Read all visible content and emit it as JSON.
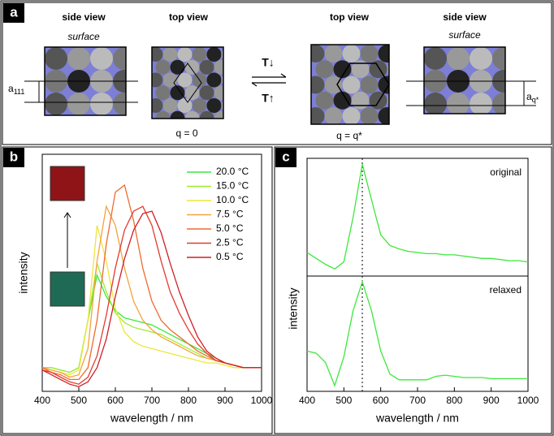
{
  "panel_labels": [
    "a",
    "b",
    "c"
  ],
  "diagram": {
    "view_labels": [
      "side view",
      "top view",
      "top view",
      "side view"
    ],
    "surface_labels": [
      "surface",
      "surface"
    ],
    "spacing_labels": [
      {
        "main": "a",
        "sub": "111"
      },
      {
        "main": "a",
        "sub": "q*"
      }
    ],
    "transition_labels": [
      "T↓",
      "T↑"
    ],
    "q_labels": [
      "q = 0",
      "q = q*"
    ]
  },
  "chart_data": [
    {
      "type": "line",
      "xlabel": "wavelength / nm",
      "ylabel": "intensity",
      "xlim": [
        400,
        1000
      ],
      "ylim": [
        0,
        1
      ],
      "xticks": [
        400,
        500,
        600,
        700,
        800,
        900,
        1000
      ],
      "legend": "top-right",
      "x": [
        400,
        425,
        450,
        475,
        500,
        525,
        550,
        575,
        600,
        625,
        650,
        675,
        700,
        725,
        750,
        775,
        800,
        825,
        850,
        875,
        900,
        925,
        950,
        975,
        1000
      ],
      "series": [
        {
          "name": "20.0 °C",
          "color": "#3de83d",
          "values": [
            0.1,
            0.1,
            0.09,
            0.08,
            0.1,
            0.3,
            0.49,
            0.4,
            0.34,
            0.31,
            0.3,
            0.29,
            0.28,
            0.26,
            0.24,
            0.22,
            0.2,
            0.18,
            0.16,
            0.14,
            0.12,
            0.11,
            0.1,
            0.1,
            0.1
          ]
        },
        {
          "name": "15.0 °C",
          "color": "#9fec2f",
          "values": [
            0.1,
            0.1,
            0.09,
            0.08,
            0.1,
            0.3,
            0.54,
            0.42,
            0.33,
            0.29,
            0.27,
            0.26,
            0.25,
            0.24,
            0.22,
            0.2,
            0.18,
            0.16,
            0.14,
            0.13,
            0.12,
            0.11,
            0.1,
            0.1,
            0.1
          ]
        },
        {
          "name": "10.0 °C",
          "color": "#ece63c",
          "values": [
            0.1,
            0.09,
            0.08,
            0.07,
            0.09,
            0.3,
            0.7,
            0.55,
            0.35,
            0.25,
            0.21,
            0.19,
            0.18,
            0.17,
            0.16,
            0.15,
            0.14,
            0.13,
            0.12,
            0.12,
            0.11,
            0.1,
            0.1,
            0.1,
            0.1
          ]
        },
        {
          "name": "7.5 °C",
          "color": "#f4a23c",
          "values": [
            0.1,
            0.09,
            0.08,
            0.06,
            0.07,
            0.18,
            0.55,
            0.78,
            0.7,
            0.52,
            0.38,
            0.3,
            0.26,
            0.23,
            0.21,
            0.19,
            0.17,
            0.15,
            0.14,
            0.13,
            0.12,
            0.11,
            0.1,
            0.1,
            0.1
          ]
        },
        {
          "name": "5.0 °C",
          "color": "#f06a30",
          "values": [
            0.1,
            0.08,
            0.07,
            0.05,
            0.05,
            0.1,
            0.3,
            0.62,
            0.84,
            0.87,
            0.72,
            0.52,
            0.38,
            0.3,
            0.26,
            0.23,
            0.2,
            0.17,
            0.15,
            0.13,
            0.12,
            0.11,
            0.1,
            0.1,
            0.1
          ]
        },
        {
          "name": "2.5 °C",
          "color": "#e43a2e",
          "values": [
            0.09,
            0.08,
            0.06,
            0.04,
            0.03,
            0.06,
            0.15,
            0.32,
            0.52,
            0.68,
            0.76,
            0.78,
            0.7,
            0.55,
            0.42,
            0.33,
            0.26,
            0.2,
            0.16,
            0.13,
            0.12,
            0.11,
            0.1,
            0.1,
            0.1
          ]
        },
        {
          "name": "0.5 °C",
          "color": "#d01f24",
          "values": [
            0.09,
            0.07,
            0.05,
            0.03,
            0.02,
            0.04,
            0.1,
            0.22,
            0.4,
            0.56,
            0.68,
            0.75,
            0.76,
            0.67,
            0.54,
            0.42,
            0.32,
            0.23,
            0.17,
            0.14,
            0.12,
            0.11,
            0.1,
            0.1,
            0.1
          ]
        }
      ]
    },
    {
      "type": "line",
      "ylabel": "intensity",
      "annotation": "original",
      "reference_line_x": 550,
      "xlim": [
        400,
        1000
      ],
      "ylim": [
        0,
        1
      ],
      "x": [
        400,
        425,
        450,
        475,
        500,
        525,
        550,
        575,
        600,
        625,
        650,
        675,
        700,
        725,
        750,
        775,
        800,
        825,
        850,
        875,
        900,
        925,
        950,
        975,
        1000
      ],
      "series": [
        {
          "name": "original",
          "color": "#3de83d",
          "values": [
            0.2,
            0.15,
            0.1,
            0.06,
            0.12,
            0.5,
            0.95,
            0.65,
            0.35,
            0.26,
            0.23,
            0.21,
            0.2,
            0.19,
            0.19,
            0.18,
            0.18,
            0.17,
            0.16,
            0.15,
            0.15,
            0.14,
            0.13,
            0.13,
            0.12
          ]
        }
      ]
    },
    {
      "type": "line",
      "xlabel": "wavelength / nm",
      "annotation": "relaxed",
      "reference_line_x": 550,
      "xlim": [
        400,
        1000
      ],
      "ylim": [
        0,
        1
      ],
      "xticks": [
        400,
        500,
        600,
        700,
        800,
        900,
        1000
      ],
      "x": [
        400,
        425,
        450,
        475,
        500,
        525,
        550,
        575,
        600,
        625,
        650,
        675,
        700,
        725,
        750,
        775,
        800,
        825,
        850,
        875,
        900,
        925,
        950,
        975,
        1000
      ],
      "series": [
        {
          "name": "relaxed",
          "color": "#3de83d",
          "values": [
            0.35,
            0.33,
            0.25,
            0.05,
            0.3,
            0.7,
            0.95,
            0.7,
            0.35,
            0.15,
            0.1,
            0.1,
            0.1,
            0.1,
            0.13,
            0.14,
            0.13,
            0.12,
            0.12,
            0.12,
            0.11,
            0.11,
            0.11,
            0.11,
            0.11
          ]
        }
      ]
    }
  ]
}
